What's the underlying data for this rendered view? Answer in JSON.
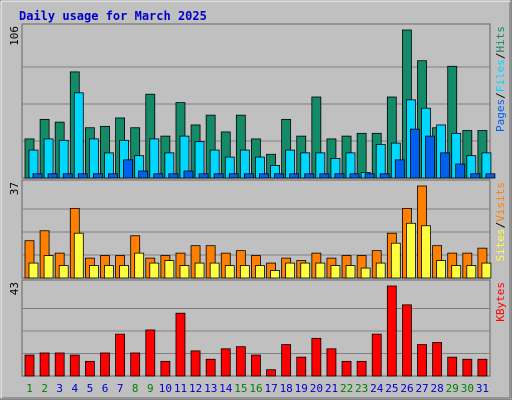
{
  "chart_data": {
    "type": "bar",
    "title": "Daily usage for March 2025",
    "categories": [
      "1",
      "2",
      "3",
      "4",
      "5",
      "6",
      "7",
      "8",
      "9",
      "10",
      "11",
      "12",
      "13",
      "14",
      "15",
      "16",
      "17",
      "18",
      "19",
      "20",
      "21",
      "22",
      "23",
      "24",
      "25",
      "26",
      "27",
      "28",
      "29",
      "30",
      "31"
    ],
    "weekend_days": [
      "1",
      "2",
      "8",
      "9",
      "15",
      "16",
      "22",
      "23",
      "29",
      "30"
    ],
    "panels": [
      {
        "id": "hits",
        "max_label": "106",
        "ymax": 106,
        "legend": [
          "Pages",
          "/",
          "Files",
          "/",
          "Hits"
        ],
        "series": [
          {
            "name": "Hits",
            "color": "#138a68",
            "values": [
              28,
              42,
              40,
              76,
              36,
              37,
              43,
              36,
              60,
              30,
              54,
              38,
              45,
              33,
              45,
              28,
              17,
              42,
              30,
              58,
              28,
              30,
              32,
              32,
              58,
              106,
              84,
              36,
              80,
              34,
              34
            ]
          },
          {
            "name": "Files",
            "color": "#00d7ff",
            "values": [
              20,
              28,
              27,
              61,
              28,
              18,
              27,
              16,
              28,
              18,
              30,
              26,
              20,
              15,
              20,
              15,
              9,
              20,
              18,
              18,
              14,
              18,
              4,
              24,
              25,
              56,
              50,
              38,
              32,
              16,
              18
            ]
          },
          {
            "name": "Pages",
            "color": "#0060ee",
            "values": [
              3,
              3,
              3,
              3,
              3,
              3,
              13,
              5,
              3,
              3,
              5,
              3,
              3,
              3,
              3,
              3,
              3,
              3,
              3,
              3,
              3,
              3,
              3,
              3,
              13,
              35,
              30,
              18,
              10,
              3,
              3
            ]
          }
        ]
      },
      {
        "id": "visits",
        "max_label": "37",
        "ymax": 37,
        "legend": [
          "Sites",
          "/",
          "Visits"
        ],
        "series": [
          {
            "name": "Visits",
            "color": "#ff7f00",
            "values": [
              15,
              19,
              10,
              28,
              8,
              9,
              9,
              17,
              8,
              9,
              10,
              13,
              13,
              10,
              11,
              9,
              6,
              8,
              7,
              10,
              8,
              9,
              9,
              11,
              18,
              28,
              37,
              13,
              10,
              10,
              12
            ]
          },
          {
            "name": "Sites",
            "color": "#ffff40",
            "values": [
              6,
              9,
              5,
              18,
              5,
              5,
              5,
              10,
              6,
              7,
              5,
              6,
              6,
              5,
              5,
              5,
              3,
              6,
              6,
              6,
              5,
              5,
              4,
              6,
              14,
              22,
              21,
              7,
              5,
              5,
              6
            ]
          }
        ]
      },
      {
        "id": "kbytes",
        "max_label": "43",
        "ymax": 43,
        "legend": [
          "KBytes"
        ],
        "series": [
          {
            "name": "KBytes",
            "color": "#ff0000",
            "values": [
              10,
              11,
              11,
              10,
              7,
              11,
              20,
              11,
              22,
              7,
              30,
              12,
              8,
              13,
              14,
              10,
              3,
              15,
              9,
              18,
              13,
              7,
              7,
              20,
              43,
              34,
              15,
              16,
              9,
              8,
              8
            ]
          }
        ]
      }
    ]
  },
  "colors": {
    "background": "#c0c0c0",
    "frame": "#888888",
    "grid": "#808080",
    "title": "#0000cc",
    "tick_weekday": "#0000cc",
    "tick_weekend": "#008000",
    "legend_separator": "#000000"
  }
}
